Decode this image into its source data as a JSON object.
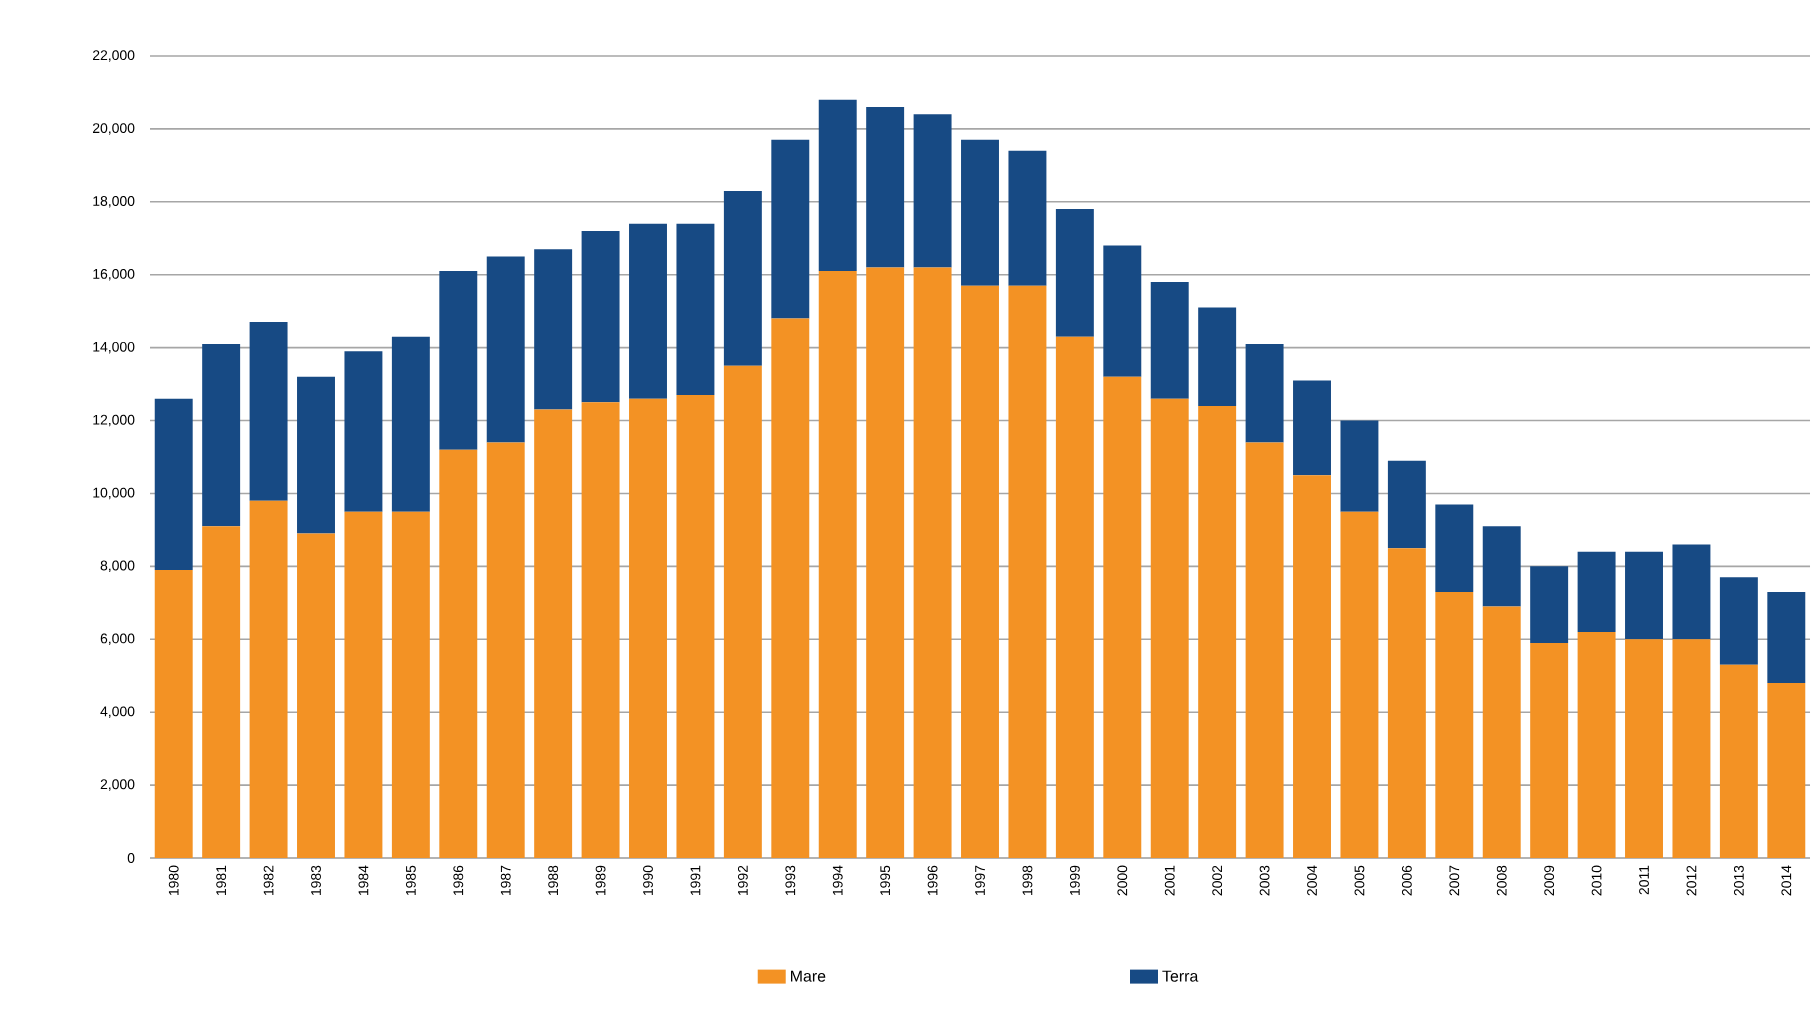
{
  "chart_data": {
    "type": "bar",
    "stacked": true,
    "categories": [
      "1980",
      "1981",
      "1982",
      "1983",
      "1984",
      "1985",
      "1986",
      "1987",
      "1988",
      "1989",
      "1990",
      "1991",
      "1992",
      "1993",
      "1994",
      "1995",
      "1996",
      "1997",
      "1998",
      "1999",
      "2000",
      "2001",
      "2002",
      "2003",
      "2004",
      "2005",
      "2006",
      "2007",
      "2008",
      "2009",
      "2010",
      "2011",
      "2012",
      "2013",
      "2014"
    ],
    "series": [
      {
        "name": "Mare",
        "color": "#f39224",
        "values": [
          7900,
          9100,
          9800,
          8900,
          9500,
          9500,
          11200,
          11400,
          12300,
          12500,
          12600,
          12700,
          13500,
          14800,
          16100,
          16200,
          16200,
          15700,
          15700,
          14300,
          13200,
          12600,
          12400,
          11400,
          10500,
          9500,
          8500,
          7300,
          6900,
          5900,
          6200,
          6000,
          6000,
          5300,
          4800
        ]
      },
      {
        "name": "Terra",
        "color": "#174a84",
        "values": [
          4700,
          5000,
          4900,
          4300,
          4400,
          4800,
          4900,
          5100,
          4400,
          4700,
          4800,
          4700,
          4800,
          4900,
          4700,
          4400,
          4200,
          4000,
          3700,
          3500,
          3600,
          3200,
          2700,
          2700,
          2600,
          2500,
          2400,
          2400,
          2200,
          2100,
          2200,
          2400,
          2600,
          2400,
          2500
        ]
      }
    ],
    "ylim": [
      0,
      22000
    ],
    "yticks": [
      0,
      {
        "value": 2000,
        "label": "2,000"
      },
      {
        "value": 4000,
        "label": "4,000"
      },
      {
        "value": 6000,
        "label": "6,000"
      },
      {
        "value": 8000,
        "label": "8,000"
      },
      {
        "value": 10000,
        "label": "10,000"
      },
      {
        "value": 12000,
        "label": "12,000"
      },
      {
        "value": 14000,
        "label": "14,000"
      },
      {
        "value": 16000,
        "label": "16,000"
      },
      {
        "value": 18000,
        "label": "18,000"
      },
      {
        "value": 20000,
        "label": "20,000"
      },
      {
        "value": 22000,
        "label": "22,000"
      }
    ],
    "grid": "y",
    "legend": "bottom"
  }
}
